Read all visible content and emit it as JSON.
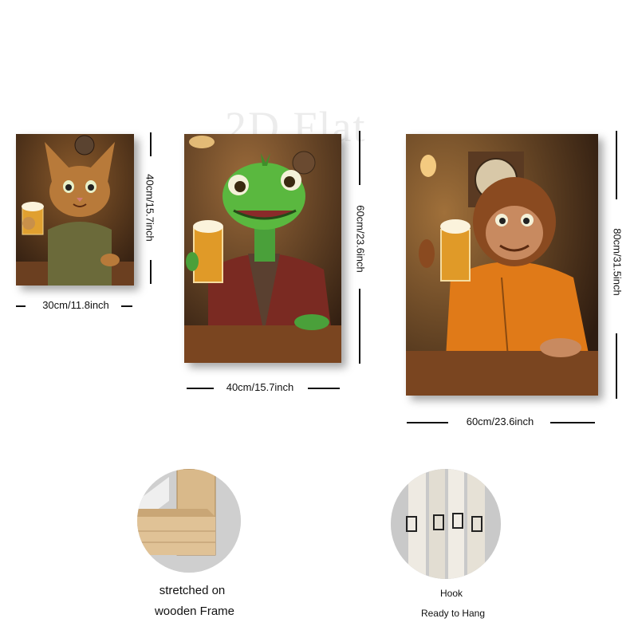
{
  "watermark": "2D Flat",
  "paintings": {
    "cat": {
      "width_label": "30cm/11.8inch",
      "height_label": "40cm/15.7inch"
    },
    "lizard": {
      "width_label": "40cm/15.7inch",
      "height_label": "60cm/23.6inch"
    },
    "monkey": {
      "width_label": "60cm/23.6inch",
      "height_label": "80cm/31.5inch"
    }
  },
  "features": {
    "frame_caption_line1": "stretched on",
    "frame_caption_line2": "wooden Frame",
    "hook_caption_line1": "Hook",
    "hook_caption_line2": "Ready to Hang"
  }
}
